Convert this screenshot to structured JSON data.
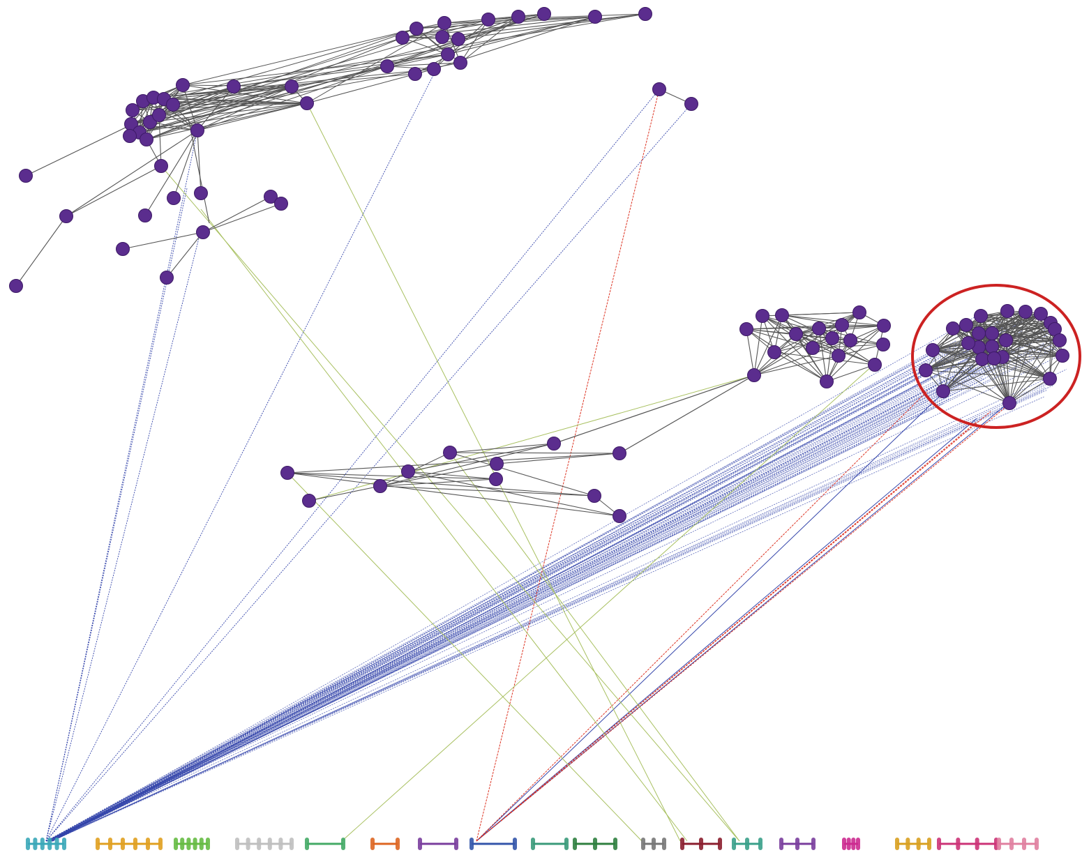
{
  "figure": {
    "description_text": "",
    "colors": {
      "node": "#5b2d8e",
      "node_edge": "#3d1a66",
      "network_edge": "#555555",
      "link_blue": "#3344aa",
      "link_green": "#a8c060",
      "link_red": "#dd3322",
      "highlight_circle": "#cc2222"
    },
    "chromosome_colors": [
      "#3aa7b8",
      "#e0a020",
      "#66bb44",
      "#bfbfbf",
      "#44aa66",
      "#dd6622",
      "#7a3e9d",
      "#3355aa",
      "#3a9a7a",
      "#2f7f3f",
      "#777777",
      "#8b1e2e",
      "#3aa08a",
      "#7a3e9d",
      "#cc2a90",
      "#d8a020",
      "#cc3377",
      "#e080a0"
    ]
  }
}
